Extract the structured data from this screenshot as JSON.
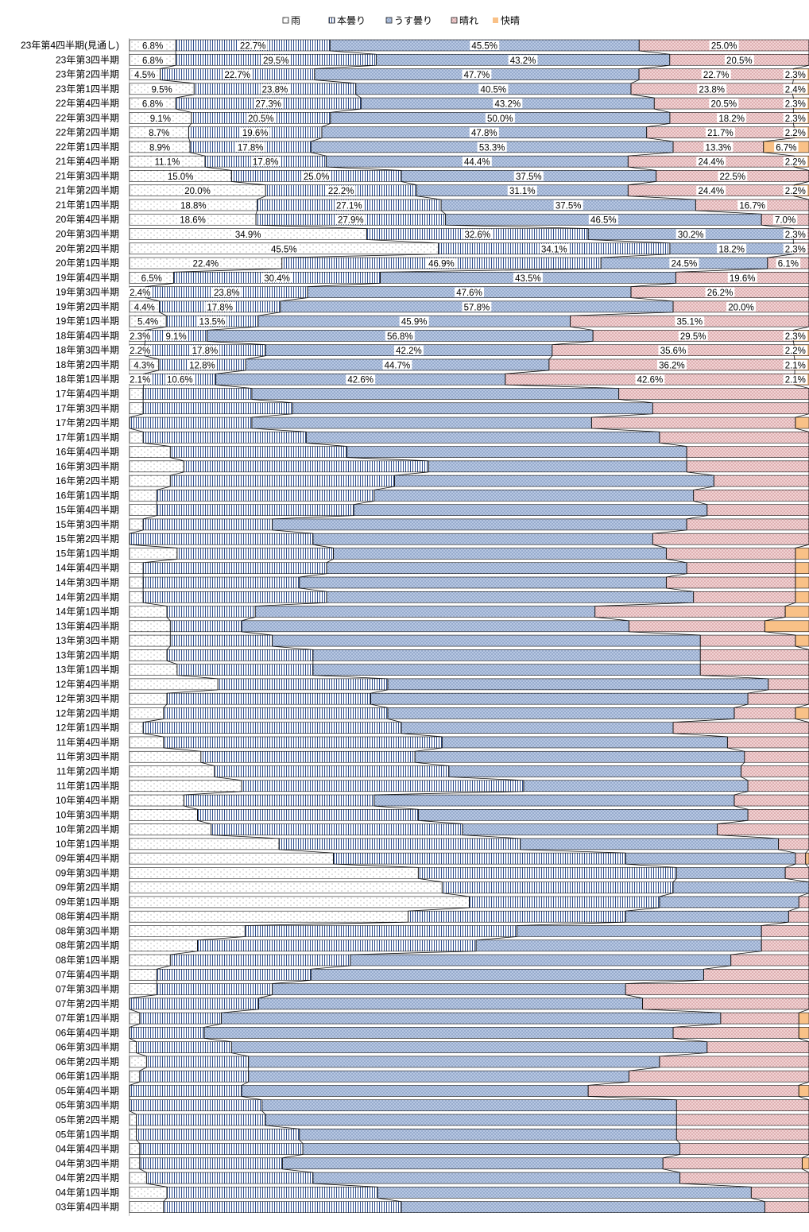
{
  "chart_data": {
    "type": "bar",
    "stacked": "100%",
    "orientation": "horizontal",
    "legend_position": "top",
    "title": "",
    "xlabel": "",
    "ylabel": "",
    "xlim": [
      0,
      100
    ],
    "grid": false,
    "series": [
      {
        "name": "雨",
        "color": "#ffffff"
      },
      {
        "name": "本曇り",
        "color": "#2f4f8f"
      },
      {
        "name": "うす曇り",
        "color": "#b7c7e2"
      },
      {
        "name": "晴れ",
        "color": "#e8c2c4"
      },
      {
        "name": "快晴",
        "color": "#f9c187"
      }
    ],
    "rows": [
      {
        "label": "23年第4四半期(見通し)",
        "values": [
          6.8,
          22.7,
          45.5,
          25.0,
          0
        ],
        "labels": [
          "6.8%",
          "22.7%",
          "45.5%",
          "25.0%",
          ""
        ]
      },
      {
        "label": "23年第3四半期",
        "values": [
          6.8,
          29.5,
          43.2,
          20.5,
          0
        ],
        "labels": [
          "6.8%",
          "29.5%",
          "43.2%",
          "20.5%",
          ""
        ]
      },
      {
        "label": "23年第2四半期",
        "values": [
          4.5,
          22.7,
          47.7,
          22.7,
          2.3
        ],
        "labels": [
          "4.5%",
          "22.7%",
          "47.7%",
          "22.7%",
          "2.3%"
        ]
      },
      {
        "label": "23年第1四半期",
        "values": [
          9.5,
          23.8,
          40.5,
          23.8,
          2.4
        ],
        "labels": [
          "9.5%",
          "23.8%",
          "40.5%",
          "23.8%",
          "2.4%"
        ]
      },
      {
        "label": "22年第4四半期",
        "values": [
          6.8,
          27.3,
          43.2,
          20.5,
          2.3
        ],
        "labels": [
          "6.8%",
          "27.3%",
          "43.2%",
          "20.5%",
          "2.3%"
        ]
      },
      {
        "label": "22年第3四半期",
        "values": [
          9.1,
          20.5,
          50.0,
          18.2,
          2.3
        ],
        "labels": [
          "9.1%",
          "20.5%",
          "50.0%",
          "18.2%",
          "2.3%"
        ]
      },
      {
        "label": "22年第2四半期",
        "values": [
          8.7,
          19.6,
          47.8,
          21.7,
          2.2
        ],
        "labels": [
          "8.7%",
          "19.6%",
          "47.8%",
          "21.7%",
          "2.2%"
        ]
      },
      {
        "label": "22年第1四半期",
        "values": [
          8.9,
          17.8,
          53.3,
          13.3,
          6.7
        ],
        "labels": [
          "8.9%",
          "17.8%",
          "53.3%",
          "13.3%",
          "6.7%"
        ]
      },
      {
        "label": "21年第4四半期",
        "values": [
          11.1,
          17.8,
          44.4,
          24.4,
          2.2
        ],
        "labels": [
          "11.1%",
          "17.8%",
          "44.4%",
          "24.4%",
          "2.2%"
        ]
      },
      {
        "label": "21年第3四半期",
        "values": [
          15.0,
          25.0,
          37.5,
          22.5,
          0
        ],
        "labels": [
          "15.0%",
          "25.0%",
          "37.5%",
          "22.5%",
          ""
        ]
      },
      {
        "label": "21年第2四半期",
        "values": [
          20.0,
          22.2,
          31.1,
          24.4,
          2.2
        ],
        "labels": [
          "20.0%",
          "22.2%",
          "31.1%",
          "24.4%",
          "2.2%"
        ]
      },
      {
        "label": "21年第1四半期",
        "values": [
          18.8,
          27.1,
          37.5,
          16.7,
          0
        ],
        "labels": [
          "18.8%",
          "27.1%",
          "37.5%",
          "16.7%",
          ""
        ]
      },
      {
        "label": "20年第4四半期",
        "values": [
          18.6,
          27.9,
          46.5,
          7.0,
          0
        ],
        "labels": [
          "18.6%",
          "27.9%",
          "46.5%",
          "7.0%",
          ""
        ]
      },
      {
        "label": "20年第3四半期",
        "values": [
          34.9,
          32.6,
          30.2,
          2.3,
          0
        ],
        "labels": [
          "34.9%",
          "32.6%",
          "30.2%",
          "2.3%",
          ""
        ]
      },
      {
        "label": "20年第2四半期",
        "values": [
          45.5,
          34.1,
          18.2,
          2.3,
          0
        ],
        "labels": [
          "45.5%",
          "34.1%",
          "18.2%",
          "2.3%",
          ""
        ]
      },
      {
        "label": "20年第1四半期",
        "values": [
          22.4,
          46.9,
          24.5,
          6.1,
          0
        ],
        "labels": [
          "22.4%",
          "46.9%",
          "24.5%",
          "6.1%",
          ""
        ]
      },
      {
        "label": "19年第4四半期",
        "values": [
          6.5,
          30.4,
          43.5,
          19.6,
          0
        ],
        "labels": [
          "6.5%",
          "30.4%",
          "43.5%",
          "19.6%",
          ""
        ]
      },
      {
        "label": "19年第3四半期",
        "values": [
          2.4,
          23.8,
          47.6,
          26.2,
          0
        ],
        "labels": [
          "2.4%",
          "23.8%",
          "47.6%",
          "26.2%",
          ""
        ]
      },
      {
        "label": "19年第2四半期",
        "values": [
          4.4,
          17.8,
          57.8,
          20.0,
          0
        ],
        "labels": [
          "4.4%",
          "17.8%",
          "57.8%",
          "20.0%",
          ""
        ]
      },
      {
        "label": "19年第1四半期",
        "values": [
          5.4,
          13.5,
          45.9,
          35.1,
          0
        ],
        "labels": [
          "5.4%",
          "13.5%",
          "45.9%",
          "35.1%",
          ""
        ]
      },
      {
        "label": "18年第4四半期",
        "values": [
          2.3,
          9.1,
          56.8,
          29.5,
          2.3
        ],
        "labels": [
          "2.3%",
          "9.1%",
          "56.8%",
          "29.5%",
          "2.3%"
        ]
      },
      {
        "label": "18年第3四半期",
        "values": [
          2.2,
          17.8,
          42.2,
          35.6,
          2.2
        ],
        "labels": [
          "2.2%",
          "17.8%",
          "42.2%",
          "35.6%",
          "2.2%"
        ]
      },
      {
        "label": "18年第2四半期",
        "values": [
          4.3,
          12.8,
          44.7,
          36.2,
          2.1
        ],
        "labels": [
          "4.3%",
          "12.8%",
          "44.7%",
          "36.2%",
          "2.1%"
        ]
      },
      {
        "label": "18年第1四半期",
        "values": [
          2.1,
          10.6,
          42.6,
          42.6,
          2.1
        ],
        "labels": [
          "2.1%",
          "10.6%",
          "42.6%",
          "42.6%",
          "2.1%"
        ]
      },
      {
        "label": "17年第4四半期",
        "values": [
          2.0,
          16.0,
          54.0,
          28.0,
          0
        ]
      },
      {
        "label": "17年第3四半期",
        "values": [
          2.0,
          22.0,
          53.0,
          23.0,
          0
        ]
      },
      {
        "label": "17年第2四半期",
        "values": [
          0,
          18.0,
          50.0,
          30.0,
          2.0
        ]
      },
      {
        "label": "17年第1四半期",
        "values": [
          2.0,
          24.0,
          52.0,
          22.0,
          0
        ]
      },
      {
        "label": "16年第4四半期",
        "values": [
          6.0,
          26.0,
          50.0,
          18.0,
          0
        ]
      },
      {
        "label": "16年第3四半期",
        "values": [
          8.0,
          36.0,
          38.0,
          18.0,
          0
        ]
      },
      {
        "label": "16年第2四半期",
        "values": [
          6.0,
          33.0,
          47.0,
          14.0,
          0
        ]
      },
      {
        "label": "16年第1四半期",
        "values": [
          4.0,
          32.0,
          47.0,
          17.0,
          0
        ]
      },
      {
        "label": "15年第4四半期",
        "values": [
          4.0,
          29.0,
          52.0,
          15.0,
          0
        ]
      },
      {
        "label": "15年第3四半期",
        "values": [
          2.0,
          19.0,
          61.0,
          18.0,
          0
        ]
      },
      {
        "label": "15年第2四半期",
        "values": [
          0,
          27.0,
          50.0,
          23.0,
          0
        ]
      },
      {
        "label": "15年第1四半期",
        "values": [
          7.0,
          23.0,
          49.0,
          19.0,
          2.0
        ]
      },
      {
        "label": "14年第4四半期",
        "values": [
          2.0,
          27.0,
          53.0,
          16.0,
          2.0
        ]
      },
      {
        "label": "14年第3四半期",
        "values": [
          2.0,
          23.0,
          54.0,
          19.0,
          2.0
        ]
      },
      {
        "label": "14年第2四半期",
        "values": [
          2.0,
          27.0,
          54.0,
          15.0,
          2.0
        ]
      },
      {
        "label": "14年第1四半期",
        "values": [
          5.5,
          13.0,
          50.0,
          28.0,
          3.5
        ]
      },
      {
        "label": "13年第4四半期",
        "values": [
          6.0,
          10.5,
          57.0,
          20.0,
          6.5
        ]
      },
      {
        "label": "13年第3四半期",
        "values": [
          6.0,
          15.0,
          63.0,
          14.0,
          2.0
        ]
      },
      {
        "label": "13年第2四半期",
        "values": [
          5.5,
          21.5,
          57.0,
          16.0,
          0
        ]
      },
      {
        "label": "13年第1四半期",
        "values": [
          7.0,
          20.0,
          57.0,
          16.0,
          0
        ]
      },
      {
        "label": "12年第4四半期",
        "values": [
          13.0,
          25.0,
          56.0,
          6.0,
          0
        ]
      },
      {
        "label": "12年第3四半期",
        "values": [
          5.5,
          30.0,
          55.5,
          9.0,
          0
        ]
      },
      {
        "label": "12年第2四半期",
        "values": [
          5.0,
          33.0,
          51.0,
          9.0,
          2.0
        ]
      },
      {
        "label": "12年第1四半期",
        "values": [
          2.0,
          38.0,
          40.0,
          20.0,
          0
        ]
      },
      {
        "label": "11年第4四半期",
        "values": [
          5.0,
          41.0,
          42.0,
          12.0,
          0
        ]
      },
      {
        "label": "11年第3四半期",
        "values": [
          10.5,
          31.5,
          48.5,
          9.5,
          0
        ]
      },
      {
        "label": "11年第2四半期",
        "values": [
          12.5,
          34.5,
          43.0,
          10.0,
          0
        ]
      },
      {
        "label": "11年第1四半期",
        "values": [
          16.5,
          41.5,
          33.0,
          9.0,
          0
        ]
      },
      {
        "label": "10年第4四半期",
        "values": [
          8.0,
          28.0,
          53.0,
          11.0,
          0
        ]
      },
      {
        "label": "10年第3四半期",
        "values": [
          10.0,
          32.5,
          48.5,
          9.0,
          0
        ]
      },
      {
        "label": "10年第2四半期",
        "values": [
          12.0,
          37.0,
          37.5,
          13.5,
          0
        ]
      },
      {
        "label": "10年第1四半期",
        "values": [
          22.0,
          35.5,
          38.0,
          4.5,
          0
        ]
      },
      {
        "label": "09年第4四半期",
        "values": [
          30.0,
          43.0,
          25.0,
          1.5,
          0.5
        ]
      },
      {
        "label": "09年第3四半期",
        "values": [
          42.5,
          38.0,
          16.0,
          3.5,
          0
        ]
      },
      {
        "label": "09年第2四半期",
        "values": [
          46.0,
          34.0,
          20.0,
          0,
          0
        ]
      },
      {
        "label": "09年第1四半期",
        "values": [
          50.0,
          28.0,
          20.5,
          1.5,
          0
        ]
      },
      {
        "label": "08年第4四半期",
        "values": [
          41.0,
          32.0,
          24.0,
          3.0,
          0
        ]
      },
      {
        "label": "08年第3四半期",
        "values": [
          17.0,
          40.0,
          36.0,
          7.0,
          0
        ]
      },
      {
        "label": "08年第2四半期",
        "values": [
          10.0,
          41.0,
          42.0,
          7.0,
          0
        ]
      },
      {
        "label": "08年第1四半期",
        "values": [
          6.0,
          26.5,
          56.0,
          11.5,
          0
        ]
      },
      {
        "label": "07年第4四半期",
        "values": [
          4.0,
          22.7,
          57.8,
          15.5,
          0
        ]
      },
      {
        "label": "07年第3四半期",
        "values": [
          4.0,
          17.0,
          52.0,
          27.0,
          0
        ]
      },
      {
        "label": "07年第2四半期",
        "values": [
          0,
          19.0,
          56.5,
          24.5,
          0
        ]
      },
      {
        "label": "07年第1四半期",
        "values": [
          1.5,
          12.0,
          73.5,
          11.5,
          1.5
        ]
      },
      {
        "label": "06年第4四半期",
        "values": [
          0,
          11.0,
          69.0,
          18.5,
          1.5
        ]
      },
      {
        "label": "06年第3四半期",
        "values": [
          1.0,
          14.0,
          70.0,
          15.0,
          0
        ]
      },
      {
        "label": "06年第2四半期",
        "values": [
          2.5,
          15.0,
          60.5,
          22.0,
          0
        ]
      },
      {
        "label": "06年第1四半期",
        "values": [
          1.5,
          16.0,
          56.0,
          26.5,
          0
        ]
      },
      {
        "label": "05年第4四半期",
        "values": [
          0,
          16.5,
          51.0,
          31.0,
          1.5
        ]
      },
      {
        "label": "05年第3四半期",
        "values": [
          0,
          19.5,
          61.0,
          19.5,
          0
        ]
      },
      {
        "label": "05年第2四半期",
        "values": [
          1.0,
          19.0,
          60.5,
          19.5,
          0
        ]
      },
      {
        "label": "05年第1四半期",
        "values": [
          1.0,
          24.0,
          55.5,
          19.5,
          0
        ]
      },
      {
        "label": "04年第4四半期",
        "values": [
          1.5,
          24.0,
          55.5,
          19.0,
          0
        ]
      },
      {
        "label": "04年第3四半期",
        "values": [
          1.5,
          21.0,
          56.0,
          20.5,
          1.0
        ]
      },
      {
        "label": "04年第2四半期",
        "values": [
          2.5,
          24.5,
          54.0,
          19.0,
          0
        ]
      },
      {
        "label": "04年第1四半期",
        "values": [
          5.5,
          31.0,
          55.0,
          8.5,
          0
        ]
      },
      {
        "label": "03年第4四半期",
        "values": [
          5.0,
          35.0,
          53.5,
          6.5,
          0
        ]
      }
    ]
  }
}
